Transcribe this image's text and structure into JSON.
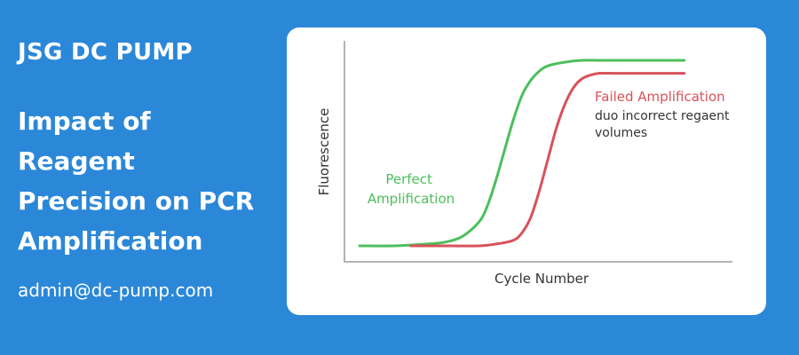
{
  "brand": "JSG DC PUMP",
  "headline": [
    "Impact of",
    "Reagent",
    "Precision on PCR",
    "Amplification"
  ],
  "contact_email": "admin@dc-pump.com",
  "colors": {
    "background": "#2b88d8",
    "card": "#ffffff",
    "perfect_curve": "#4cbf5b",
    "failed_curve": "#d8525a"
  },
  "chart_data": {
    "type": "line",
    "title": "",
    "xlabel": "Cycle Number",
    "ylabel": "Fluorescence",
    "xlim": [
      0,
      40
    ],
    "ylim": [
      0,
      1
    ],
    "grid": false,
    "series": [
      {
        "name": "Perfect Amplification",
        "color": "#4cbf5b",
        "x": [
          0,
          4,
          8,
          10,
          12,
          14,
          15,
          16,
          17,
          18,
          19,
          20,
          21,
          22,
          24,
          26,
          28,
          32,
          36,
          38
        ],
        "y": [
          0.0,
          0.0,
          0.01,
          0.02,
          0.05,
          0.13,
          0.22,
          0.36,
          0.52,
          0.68,
          0.81,
          0.89,
          0.94,
          0.97,
          0.99,
          1.0,
          1.0,
          1.0,
          1.0,
          1.0
        ]
      },
      {
        "name": "Failed Amplification",
        "color": "#d8525a",
        "x": [
          6,
          10,
          14,
          16,
          18,
          19,
          20,
          21,
          22,
          23,
          24,
          25,
          26,
          27,
          28,
          30,
          34,
          38
        ],
        "y": [
          0.0,
          0.0,
          0.0,
          0.01,
          0.03,
          0.07,
          0.15,
          0.29,
          0.46,
          0.63,
          0.76,
          0.85,
          0.9,
          0.92,
          0.93,
          0.93,
          0.93,
          0.93
        ]
      }
    ],
    "annotations": [
      {
        "series": 0,
        "lines": [
          "Perfect",
          "Amplification"
        ]
      },
      {
        "series": 1,
        "lines": [
          "Failed Amplification"
        ],
        "sub": [
          "duo incorrect regaent",
          "volumes"
        ]
      }
    ]
  }
}
